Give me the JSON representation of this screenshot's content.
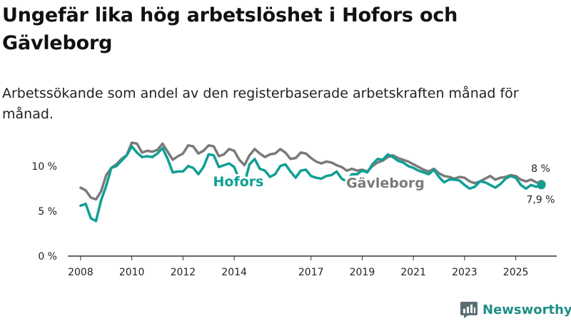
{
  "title": "Ungefär lika hög arbetslöshet i Hofors och Gävleborg",
  "subtitle": "Arbetssökande som andel av den registerbaserade arbetskraften månad för månad.",
  "brand": "Newsworthy",
  "colors": {
    "hofors": "#0f9f95",
    "gavleborg": "#7a7a7a",
    "axis": "#333333",
    "text": "#222222",
    "brand": "#1f8f86"
  },
  "chart_data": {
    "type": "line",
    "xlim": [
      2007.5,
      2026.6
    ],
    "ylim": [
      0,
      13
    ],
    "x_ticks": [
      2008,
      2010,
      2012,
      2014,
      2017,
      2019,
      2021,
      2023,
      2025
    ],
    "x_tick_labels": [
      "2008",
      "2010",
      "2012",
      "2014",
      "2017",
      "2019",
      "2021",
      "2023",
      "2025"
    ],
    "y_ticks": [
      0,
      5,
      10
    ],
    "y_tick_labels": [
      "0 %",
      "5 %",
      "10 %"
    ],
    "series": [
      {
        "name": "Gävleborg",
        "label": "Gävleborg",
        "end_label": "8 %",
        "end_value": 8.0,
        "x": [
          2008.0,
          2008.2,
          2008.4,
          2008.6,
          2008.8,
          2009.0,
          2009.2,
          2009.4,
          2009.6,
          2009.8,
          2010.0,
          2010.2,
          2010.4,
          2010.6,
          2010.8,
          2011.0,
          2011.2,
          2011.4,
          2011.6,
          2011.8,
          2012.0,
          2012.2,
          2012.4,
          2012.6,
          2012.8,
          2013.0,
          2013.2,
          2013.4,
          2013.6,
          2013.8,
          2014.0,
          2014.2,
          2014.4,
          2014.6,
          2014.8,
          2015.0,
          2015.2,
          2015.4,
          2015.6,
          2015.8,
          2016.0,
          2016.2,
          2016.4,
          2016.6,
          2016.8,
          2017.0,
          2017.2,
          2017.4,
          2017.6,
          2017.8,
          2018.0,
          2018.2,
          2018.4,
          2018.6,
          2018.8,
          2019.0,
          2019.2,
          2019.4,
          2019.6,
          2019.8,
          2020.0,
          2020.2,
          2020.4,
          2020.6,
          2020.8,
          2021.0,
          2021.2,
          2021.4,
          2021.6,
          2021.8,
          2022.0,
          2022.2,
          2022.4,
          2022.6,
          2022.8,
          2023.0,
          2023.2,
          2023.4,
          2023.6,
          2023.8,
          2024.0,
          2024.2,
          2024.4,
          2024.6,
          2024.8,
          2025.0,
          2025.2,
          2025.4,
          2025.6,
          2025.8,
          2026.0
        ],
        "values": [
          7.6,
          7.3,
          6.5,
          6.3,
          7.2,
          9.0,
          9.8,
          10.2,
          10.8,
          11.2,
          12.6,
          12.5,
          11.5,
          11.7,
          11.6,
          11.8,
          12.5,
          11.6,
          10.7,
          11.1,
          11.4,
          12.3,
          12.2,
          11.4,
          11.7,
          12.3,
          12.2,
          11.1,
          11.3,
          11.9,
          11.7,
          10.7,
          10.1,
          11.2,
          11.9,
          11.4,
          11.0,
          11.3,
          11.4,
          11.9,
          11.5,
          10.8,
          10.9,
          11.5,
          11.4,
          10.9,
          10.5,
          10.3,
          10.5,
          10.4,
          10.1,
          9.9,
          9.5,
          9.7,
          9.5,
          9.6,
          9.4,
          10.0,
          10.4,
          10.6,
          11.0,
          11.2,
          10.9,
          10.7,
          10.5,
          10.2,
          9.9,
          9.6,
          9.4,
          9.7,
          9.2,
          8.9,
          8.8,
          8.6,
          8.8,
          8.7,
          8.3,
          8.1,
          8.3,
          8.6,
          8.9,
          8.5,
          8.7,
          8.8,
          9.0,
          8.9,
          8.5,
          8.3,
          8.5,
          8.2,
          8.0
        ]
      },
      {
        "name": "Hofors",
        "label": "Hofors",
        "end_label": "7,9 %",
        "end_value": 7.9,
        "x": [
          2008.0,
          2008.2,
          2008.4,
          2008.6,
          2008.8,
          2009.0,
          2009.2,
          2009.4,
          2009.6,
          2009.8,
          2010.0,
          2010.2,
          2010.4,
          2010.6,
          2010.8,
          2011.0,
          2011.2,
          2011.4,
          2011.6,
          2011.8,
          2012.0,
          2012.2,
          2012.4,
          2012.6,
          2012.8,
          2013.0,
          2013.2,
          2013.4,
          2013.6,
          2013.8,
          2014.0,
          2014.2,
          2014.4,
          2014.6,
          2014.8,
          2015.0,
          2015.2,
          2015.4,
          2015.6,
          2015.8,
          2016.0,
          2016.2,
          2016.4,
          2016.6,
          2016.8,
          2017.0,
          2017.2,
          2017.4,
          2017.6,
          2017.8,
          2018.0,
          2018.2,
          2018.4,
          2018.6,
          2018.8,
          2019.0,
          2019.2,
          2019.4,
          2019.6,
          2019.8,
          2020.0,
          2020.2,
          2020.4,
          2020.6,
          2020.8,
          2021.0,
          2021.2,
          2021.4,
          2021.6,
          2021.8,
          2022.0,
          2022.2,
          2022.4,
          2022.6,
          2022.8,
          2023.0,
          2023.2,
          2023.4,
          2023.6,
          2023.8,
          2024.0,
          2024.2,
          2024.4,
          2024.6,
          2024.8,
          2025.0,
          2025.2,
          2025.4,
          2025.6,
          2025.8,
          2026.0
        ],
        "values": [
          5.6,
          5.8,
          4.2,
          3.9,
          6.2,
          7.8,
          9.8,
          10.0,
          10.6,
          11.2,
          12.2,
          11.5,
          11.0,
          11.1,
          11.0,
          11.4,
          12.0,
          10.8,
          9.3,
          9.4,
          9.4,
          10.0,
          9.8,
          9.1,
          9.9,
          11.3,
          11.2,
          9.9,
          10.1,
          10.3,
          9.9,
          8.5,
          8.1,
          10.2,
          10.8,
          9.7,
          9.5,
          8.8,
          9.1,
          10.0,
          10.2,
          9.4,
          8.7,
          9.5,
          9.6,
          8.9,
          8.7,
          8.6,
          8.9,
          9.0,
          9.4,
          8.6,
          8.3,
          9.1,
          9.1,
          9.5,
          9.3,
          10.2,
          10.8,
          10.7,
          11.3,
          11.0,
          10.6,
          10.4,
          10.0,
          9.8,
          9.5,
          9.3,
          9.1,
          9.6,
          8.8,
          8.2,
          8.5,
          8.5,
          8.4,
          7.9,
          7.5,
          7.7,
          8.3,
          8.2,
          7.9,
          7.6,
          8.0,
          8.6,
          8.9,
          8.7,
          7.9,
          7.5,
          7.9,
          7.7,
          7.9
        ]
      }
    ]
  }
}
